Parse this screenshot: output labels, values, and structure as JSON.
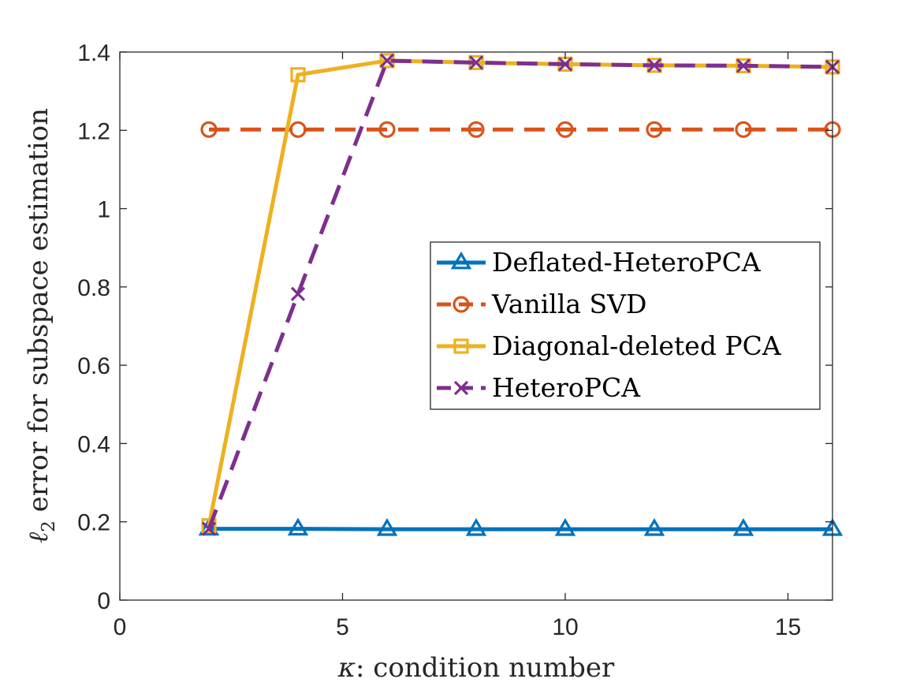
{
  "chart_data": {
    "type": "line",
    "title": "",
    "xlabel": ": condition number",
    "xlabel_symbol": "κ",
    "ylabel": " error for subspace estimation",
    "ylabel_symbol": "ℓ",
    "ylabel_subscript": "2",
    "xlim": [
      0,
      16
    ],
    "ylim": [
      0,
      1.4
    ],
    "xticks": [
      0,
      5,
      10,
      15
    ],
    "xtick_labels": [
      "0",
      "5",
      "10",
      "15"
    ],
    "yticks": [
      0,
      0.2,
      0.4,
      0.6,
      0.8,
      1.0,
      1.2,
      1.4
    ],
    "ytick_labels": [
      "0",
      "0.2",
      "0.4",
      "0.6",
      "0.8",
      "1",
      "1.2",
      "1.4"
    ],
    "grid": false,
    "legend_position": "center-right",
    "x": [
      2,
      4,
      6,
      8,
      10,
      12,
      14,
      16
    ],
    "series": [
      {
        "name": "Deflated-HeteroPCA",
        "color": "#0072BD",
        "line": "solid",
        "marker": "triangle",
        "values": [
          0.182,
          0.182,
          0.181,
          0.181,
          0.181,
          0.181,
          0.181,
          0.181
        ]
      },
      {
        "name": "Vanilla SVD",
        "color": "#D95319",
        "line": "dashed",
        "marker": "circle",
        "values": [
          1.202,
          1.202,
          1.202,
          1.202,
          1.202,
          1.202,
          1.202,
          1.202
        ]
      },
      {
        "name": "Diagonal-deleted PCA",
        "color": "#EDB120",
        "line": "solid",
        "marker": "square",
        "values": [
          0.19,
          1.342,
          1.378,
          1.373,
          1.369,
          1.366,
          1.365,
          1.362
        ]
      },
      {
        "name": "HeteroPCA",
        "color": "#7E2F8E",
        "line": "dashed",
        "marker": "x",
        "values": [
          0.182,
          0.782,
          1.378,
          1.373,
          1.369,
          1.366,
          1.365,
          1.362
        ]
      }
    ]
  }
}
